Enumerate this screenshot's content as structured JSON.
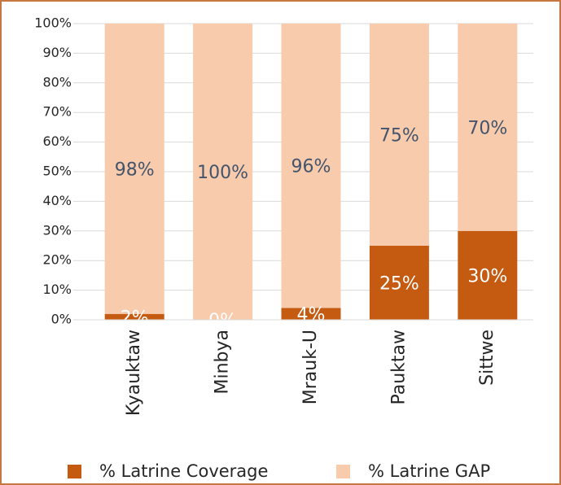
{
  "chart_data": {
    "type": "stacked_bar",
    "categories": [
      "Kyauktaw",
      "Minbya",
      "Mrauk-U",
      "Pauktaw",
      "Sittwe"
    ],
    "series": [
      {
        "name": "% Latrine Coverage",
        "color": "#c55a11",
        "values": [
          2,
          0,
          4,
          25,
          30
        ],
        "value_labels": [
          "2%",
          "0%",
          "4%",
          "25%",
          "30%"
        ]
      },
      {
        "name": "% Latrine GAP",
        "color": "#f8cbad",
        "values": [
          98,
          100,
          96,
          75,
          70
        ],
        "value_labels": [
          "98%",
          "100%",
          "96%",
          "75%",
          "70%"
        ]
      }
    ],
    "ylim": [
      0,
      100
    ],
    "yticks": [
      {
        "value": 0,
        "label": "0%"
      },
      {
        "value": 10,
        "label": "10%"
      },
      {
        "value": 20,
        "label": "20%"
      },
      {
        "value": 30,
        "label": "30%"
      },
      {
        "value": 40,
        "label": "40%"
      },
      {
        "value": 50,
        "label": "50%"
      },
      {
        "value": 60,
        "label": "60%"
      },
      {
        "value": 70,
        "label": "70%"
      },
      {
        "value": 80,
        "label": "80%"
      },
      {
        "value": 90,
        "label": "90%"
      },
      {
        "value": 100,
        "label": "100%"
      }
    ],
    "grid": true,
    "legend": "bottom"
  }
}
